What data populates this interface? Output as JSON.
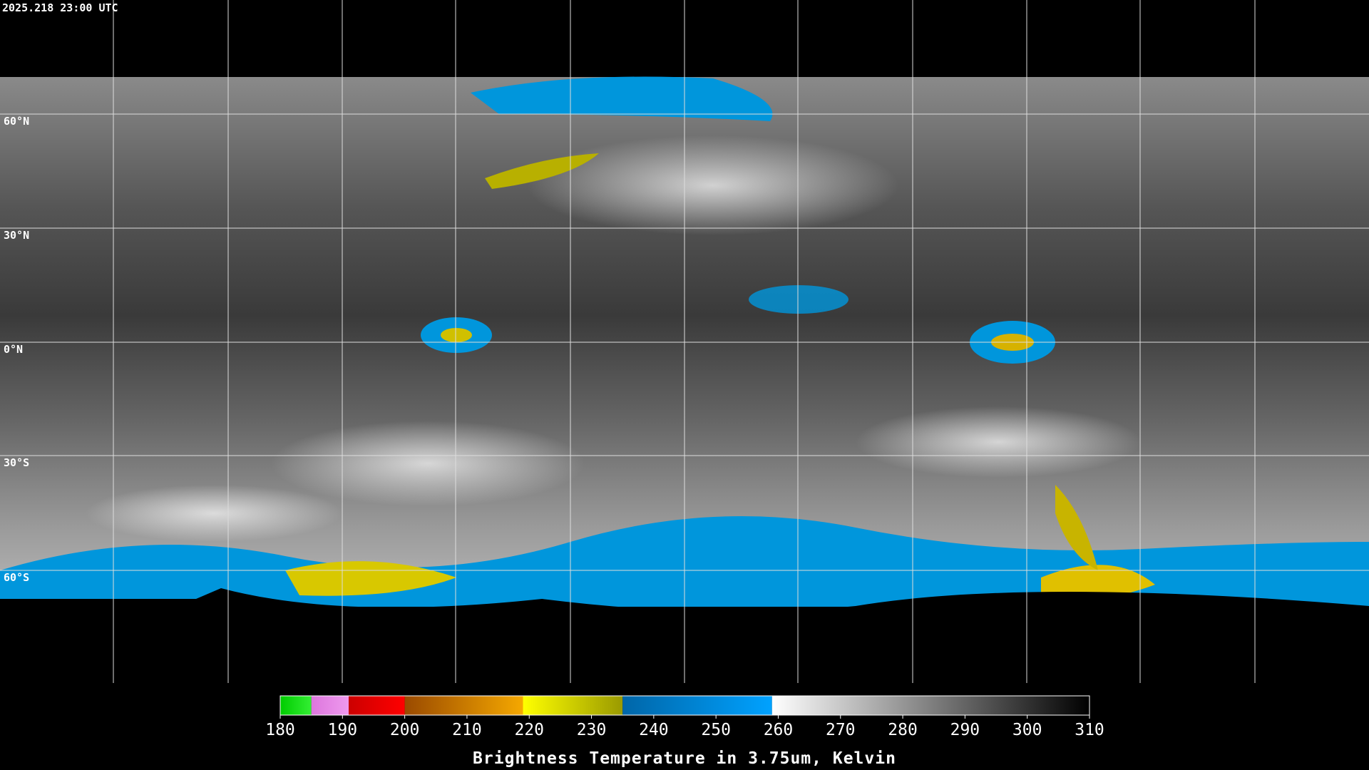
{
  "header": {
    "timestamp": "2025.218 23:00 UTC"
  },
  "map": {
    "latitude_labels": [
      "60°N",
      "30°N",
      "0°N",
      "30°S",
      "60°S"
    ]
  },
  "colorbar": {
    "min": 180,
    "max": 310,
    "ticks": [
      180,
      190,
      200,
      210,
      220,
      230,
      240,
      250,
      260,
      270,
      280,
      290,
      300,
      310
    ],
    "segments": [
      {
        "from": 180,
        "to": 185,
        "colors": [
          "#00cc00",
          "#33ee33"
        ]
      },
      {
        "from": 185,
        "to": 191,
        "colors": [
          "#dd77dd",
          "#ee99ee"
        ]
      },
      {
        "from": 191,
        "to": 200,
        "colors": [
          "#cc0000",
          "#ff0000"
        ]
      },
      {
        "from": 200,
        "to": 219,
        "colors": [
          "#9a4a00",
          "#f5a800"
        ]
      },
      {
        "from": 219,
        "to": 235,
        "colors": [
          "#ffff00",
          "#9a9a00"
        ]
      },
      {
        "from": 235,
        "to": 259,
        "colors": [
          "#0066a8",
          "#00a2ff"
        ]
      },
      {
        "from": 259,
        "to": 310,
        "colors": [
          "#ffffff",
          "#000000"
        ]
      }
    ],
    "title": "Brightness Temperature in 3.75um, Kelvin"
  }
}
